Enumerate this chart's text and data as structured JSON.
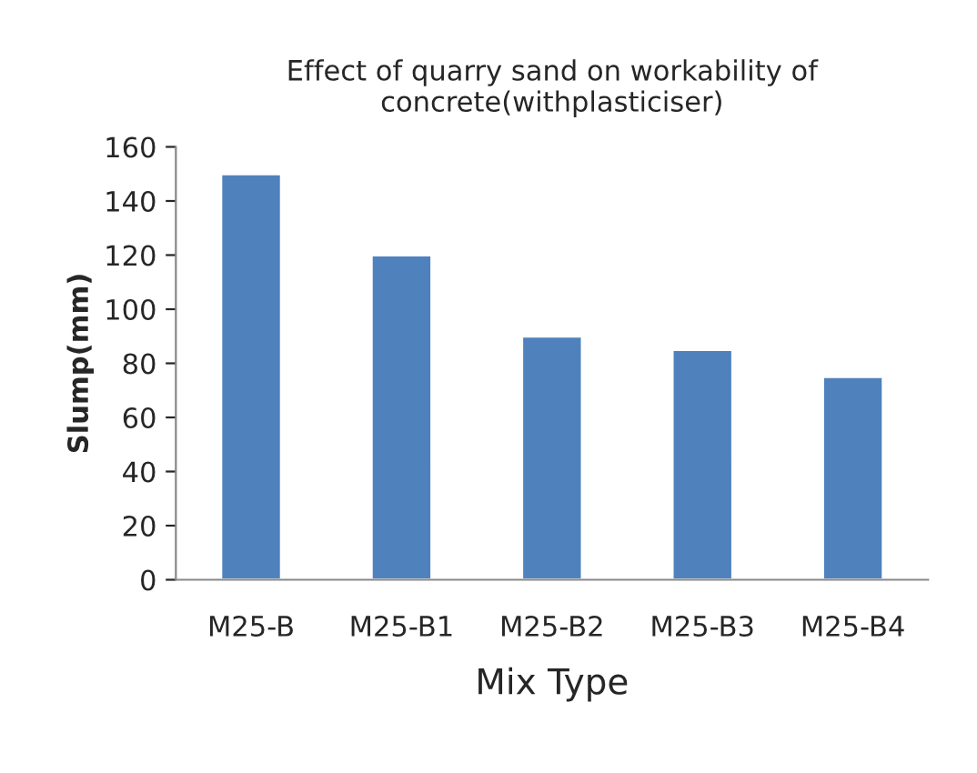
{
  "chart_data": {
    "type": "bar",
    "title": "Effect of quarry sand on workability of\nconcrete(withplasticiser)",
    "xlabel": "Mix Type",
    "ylabel": "Slump(mm)",
    "categories": [
      "M25-B",
      "M25-B1",
      "M25-B2",
      "M25-B3",
      "M25-B4"
    ],
    "values": [
      150,
      120,
      90,
      85,
      75
    ],
    "color": "#4f81bd",
    "ylim": [
      0,
      160
    ],
    "yticks": [
      0,
      20,
      40,
      60,
      80,
      100,
      120,
      140,
      160
    ],
    "grid": false,
    "legend": false
  }
}
